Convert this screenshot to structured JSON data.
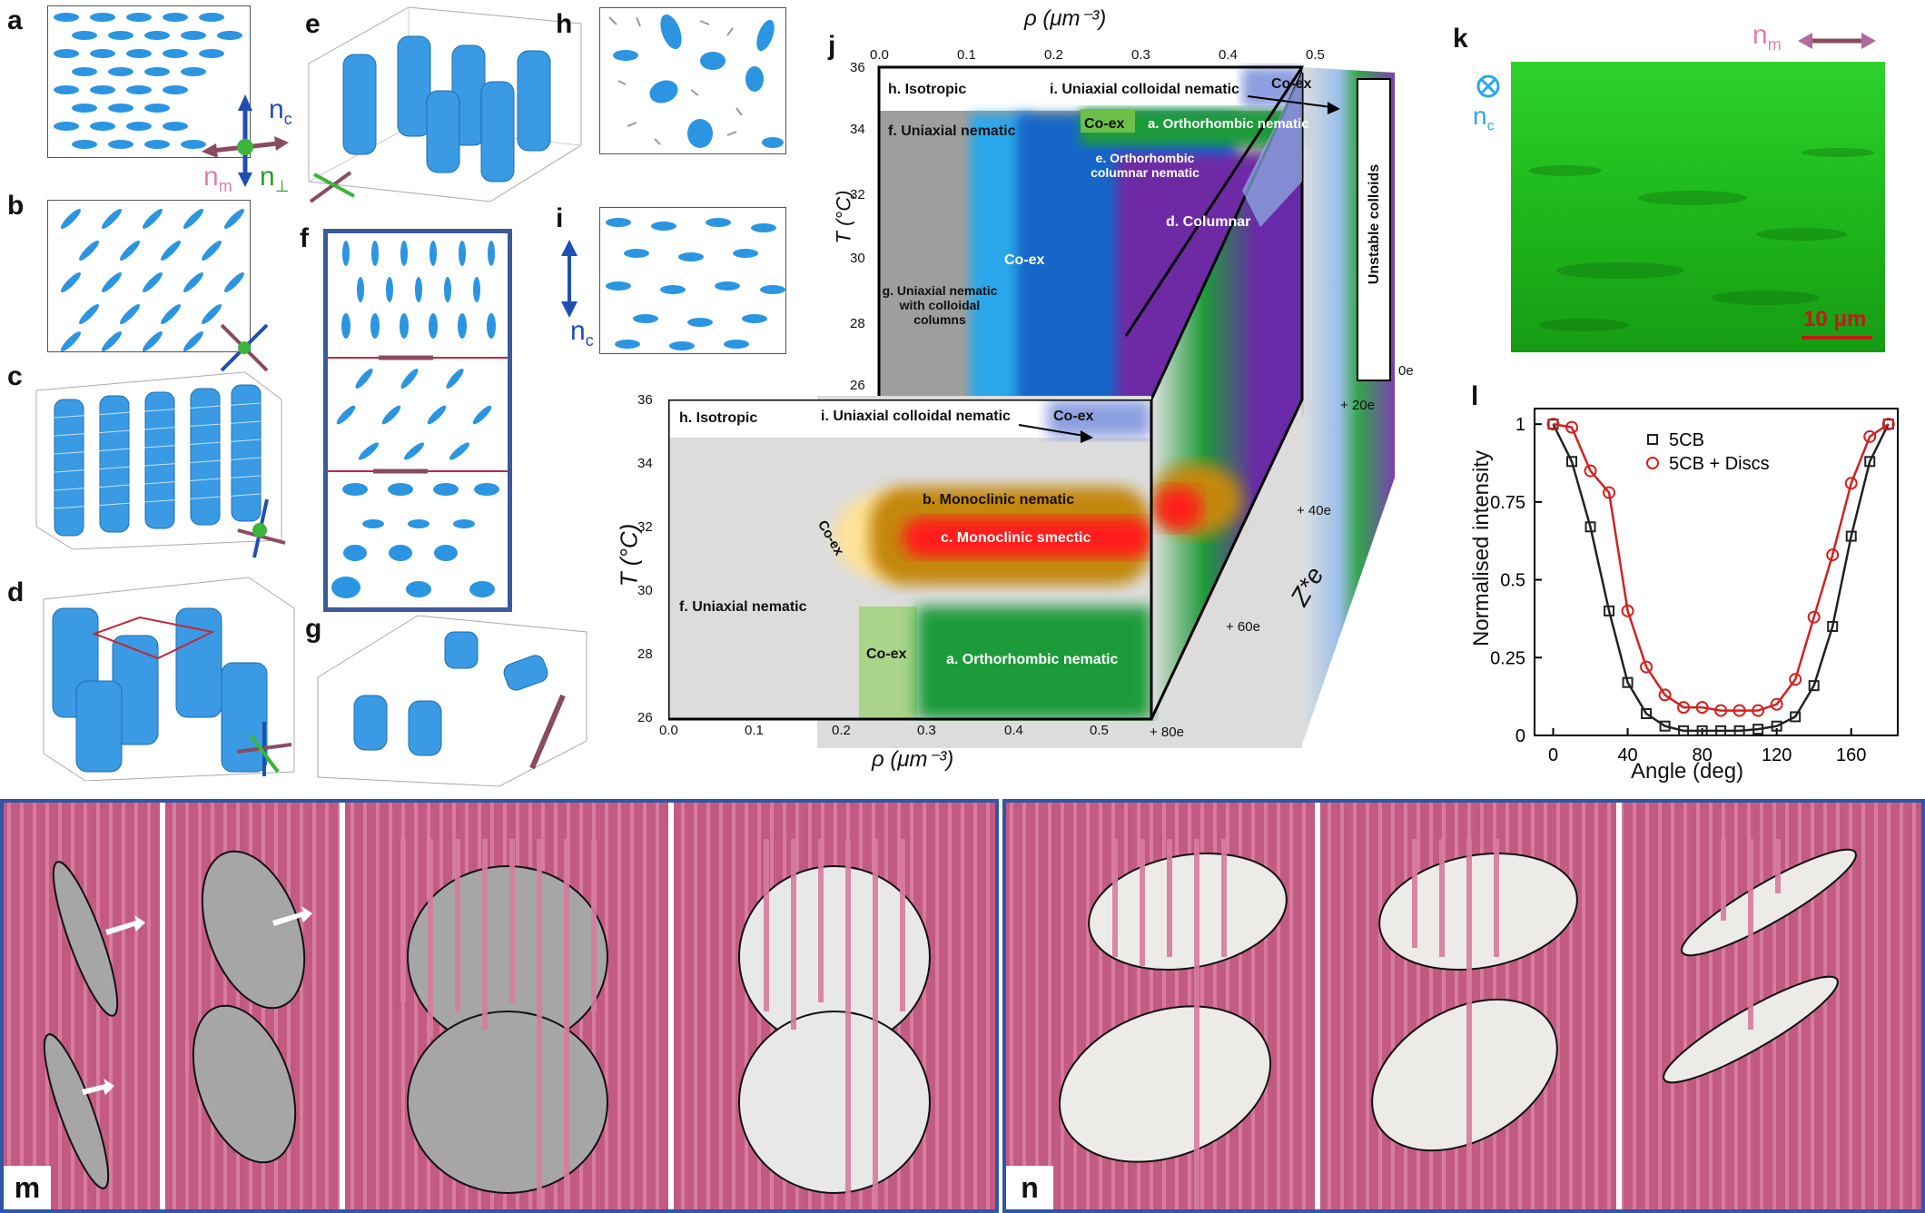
{
  "panel_letters": [
    "a",
    "b",
    "c",
    "d",
    "e",
    "f",
    "g",
    "h",
    "i",
    "j",
    "k",
    "l",
    "m",
    "n"
  ],
  "vectors": {
    "nc": "n",
    "nc_sub": "c",
    "nm": "n",
    "nm_sub": "m",
    "nperp": "n",
    "nperp_sub": "⊥"
  },
  "phase_diagram": {
    "top_axis_label": "ρ (μm⁻³)",
    "bottom_axis_label": "ρ (μm⁻³)",
    "t_axis_label": "T (°C)",
    "z_axis_label": "Z*e",
    "rho_ticks": [
      "0.0",
      "0.1",
      "0.2",
      "0.3",
      "0.4",
      "0.5"
    ],
    "t_ticks": [
      "36",
      "34",
      "32",
      "30",
      "28",
      "26"
    ],
    "z_ticks": [
      "0e",
      "+ 20e",
      "+ 40e",
      "+ 60e",
      "+ 80e"
    ],
    "unstable": "Unstable colloids",
    "top_regions": {
      "iso": "h. Isotropic",
      "ucn": "i. Uniaxial colloidal nematic",
      "coex1": "Co-ex",
      "un": "f. Uniaxial  nematic",
      "coex2": "Co-ex",
      "orth": "a. Orthorhombic nematic",
      "ocn": "e. Orthorhombic columnar nematic",
      "coex3": "Co-ex",
      "col": "d. Columnar",
      "uncc": "g. Uniaxial nematic with colloidal columns"
    },
    "bottom_regions": {
      "iso": "h. Isotropic",
      "ucn": "i. Uniaxial colloidal nematic",
      "coex1": "Co-ex",
      "mono_nem": "b. Monoclinic nematic",
      "mono_sm": "c. Monoclinic smectic",
      "coex2": "Co-ex",
      "un": "f. Uniaxial  nematic",
      "coex3": "Co-ex",
      "orth": "a. Orthorhombic nematic"
    }
  },
  "micrograph": {
    "scale_bar": "10 μm",
    "color": "#22c81e"
  },
  "chart_data": {
    "type": "scatter",
    "title": "",
    "xlabel": "Angle (deg)",
    "ylabel": "Normalised intensity",
    "xlim": [
      -10,
      185
    ],
    "ylim": [
      0,
      1.05
    ],
    "x_ticks": [
      "0",
      "40",
      "80",
      "120",
      "160"
    ],
    "y_ticks": [
      "0",
      "0.25",
      "0.5",
      "0.75",
      "1"
    ],
    "series": [
      {
        "name": "5CB",
        "marker": "square",
        "color": "#222222",
        "x": [
          0,
          10,
          20,
          30,
          40,
          50,
          60,
          70,
          80,
          90,
          100,
          110,
          120,
          130,
          140,
          150,
          160,
          170,
          180
        ],
        "y": [
          1.0,
          0.88,
          0.67,
          0.4,
          0.17,
          0.07,
          0.03,
          0.015,
          0.015,
          0.015,
          0.015,
          0.02,
          0.03,
          0.06,
          0.16,
          0.35,
          0.64,
          0.88,
          1.0
        ]
      },
      {
        "name": "5CB + Discs",
        "marker": "circle",
        "color": "#d42020",
        "x": [
          0,
          10,
          20,
          30,
          40,
          50,
          60,
          70,
          80,
          90,
          100,
          110,
          120,
          130,
          140,
          150,
          160,
          170,
          180
        ],
        "y": [
          1.0,
          0.99,
          0.85,
          0.78,
          0.4,
          0.22,
          0.13,
          0.09,
          0.09,
          0.08,
          0.08,
          0.08,
          0.1,
          0.18,
          0.38,
          0.58,
          0.81,
          0.96,
          1.0
        ]
      }
    ]
  }
}
